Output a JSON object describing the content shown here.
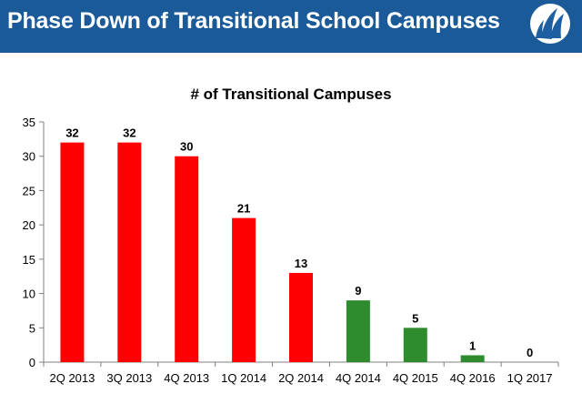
{
  "header": {
    "title": "Phase Down of Transitional School Campuses",
    "background_color": "#1a5a98",
    "logo_icon": "sail-logo-icon"
  },
  "chart_data": {
    "type": "bar",
    "title": "# of Transitional Campuses",
    "xlabel": "",
    "ylabel": "",
    "categories": [
      "2Q 2013",
      "3Q 2013",
      "4Q 2013",
      "1Q 2014",
      "2Q 2014",
      "4Q 2014",
      "4Q 2015",
      "4Q 2016",
      "1Q 2017"
    ],
    "values": [
      32,
      32,
      30,
      21,
      13,
      9,
      5,
      1,
      0
    ],
    "colors": [
      "#ff0000",
      "#ff0000",
      "#ff0000",
      "#ff0000",
      "#ff0000",
      "#2e8b2e",
      "#2e8b2e",
      "#2e8b2e",
      "#2e8b2e"
    ],
    "ylim": [
      0,
      35
    ],
    "yticks": [
      0,
      5,
      10,
      15,
      20,
      25,
      30,
      35
    ],
    "grid": false,
    "legend": "none",
    "data_labels": true
  }
}
